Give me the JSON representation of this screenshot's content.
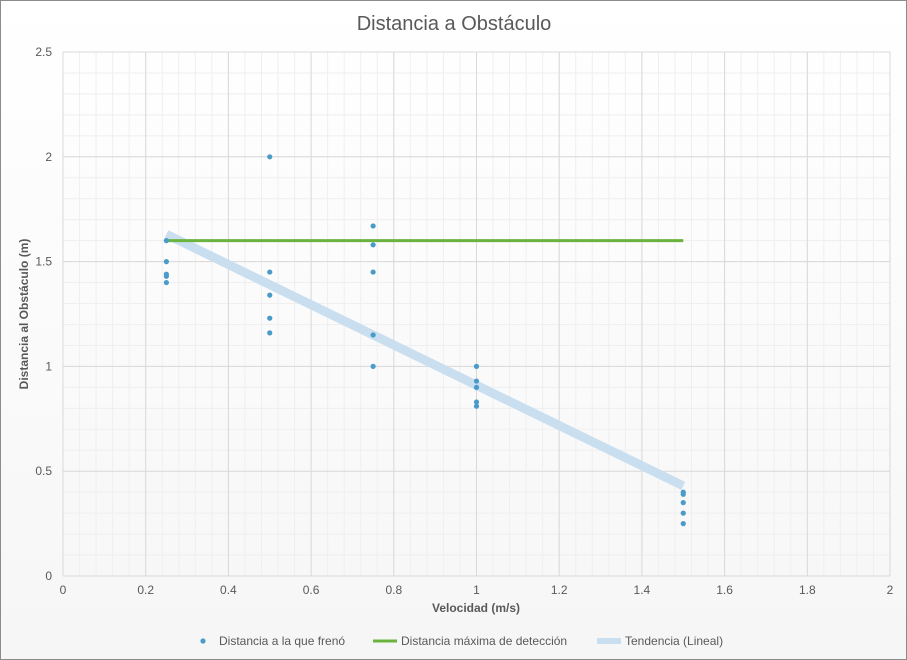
{
  "chart_data": {
    "type": "scatter",
    "title": "Distancia a Obstáculo",
    "xlabel": "Velocidad (m/s)",
    "ylabel": "Distancia al Obstáculo (m)",
    "xlim": [
      0,
      2
    ],
    "ylim": [
      0,
      2.5
    ],
    "x_ticks": [
      "0",
      "0.2",
      "0.4",
      "0.6",
      "0.8",
      "1",
      "1.2",
      "1.4",
      "1.6",
      "1.8",
      "2"
    ],
    "y_ticks": [
      "0",
      "0.5",
      "1",
      "1.5",
      "2",
      "2.5"
    ],
    "grid": true,
    "legend_position": "bottom",
    "series": [
      {
        "name": "Distancia a la que frenó",
        "kind": "scatter",
        "color": "#4a9bc7",
        "points": [
          [
            0.25,
            1.6
          ],
          [
            0.25,
            1.5
          ],
          [
            0.25,
            1.44
          ],
          [
            0.25,
            1.43
          ],
          [
            0.25,
            1.4
          ],
          [
            0.5,
            2.0
          ],
          [
            0.5,
            1.45
          ],
          [
            0.5,
            1.34
          ],
          [
            0.5,
            1.23
          ],
          [
            0.5,
            1.16
          ],
          [
            0.75,
            1.67
          ],
          [
            0.75,
            1.58
          ],
          [
            0.75,
            1.45
          ],
          [
            0.75,
            1.15
          ],
          [
            0.75,
            1.0
          ],
          [
            1.0,
            1.0
          ],
          [
            1.0,
            0.93
          ],
          [
            1.0,
            0.9
          ],
          [
            1.0,
            0.83
          ],
          [
            1.0,
            0.81
          ],
          [
            1.5,
            0.4
          ],
          [
            1.5,
            0.39
          ],
          [
            1.5,
            0.35
          ],
          [
            1.5,
            0.3
          ],
          [
            1.5,
            0.25
          ]
        ]
      },
      {
        "name": "Distancia máxima de detección",
        "kind": "line",
        "color": "#6ab33f",
        "points": [
          [
            0.25,
            1.6
          ],
          [
            1.5,
            1.6
          ]
        ]
      },
      {
        "name": "Tendencia (Lineal)",
        "kind": "trendline",
        "color": "#c9dff0",
        "points": [
          [
            0.25,
            1.63
          ],
          [
            1.5,
            0.43
          ]
        ]
      }
    ]
  }
}
